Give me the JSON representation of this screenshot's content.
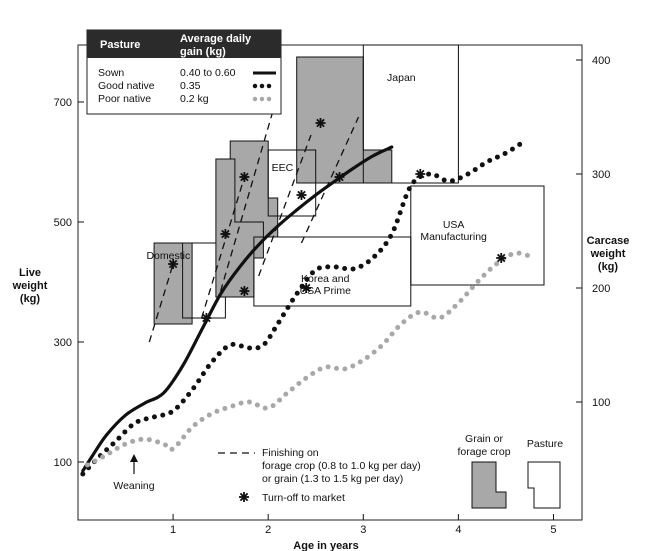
{
  "chart_data": {
    "type": "line",
    "xlabel": "Age in years",
    "ylabel_left": "Live weight (kg)",
    "ylabel_right": "Carcase weight (kg)",
    "xlim": [
      0,
      5.3
    ],
    "ylim": [
      50,
      830
    ],
    "x_ticks": [
      1,
      2,
      3,
      4,
      5
    ],
    "y_ticks_left": [
      100,
      300,
      500,
      700
    ],
    "y_ticks_right": [
      {
        "label": "100",
        "live": 200
      },
      {
        "label": "200",
        "live": 390
      },
      {
        "label": "300",
        "live": 580
      },
      {
        "label": "400",
        "live": 770
      }
    ],
    "legend": {
      "header": [
        "Pasture",
        "Average daily gain (kg)"
      ],
      "rows": [
        {
          "name": "Sown",
          "gain": "0.40 to 0.60",
          "style": "solid"
        },
        {
          "name": "Good native",
          "gain": "0.35",
          "style": "dotted-black"
        },
        {
          "name": "Poor native",
          "gain": "0.2 kg",
          "style": "dotted-grey"
        }
      ]
    },
    "series": [
      {
        "name": "Sown",
        "color": "#111111",
        "style": "solid",
        "x": [
          0.05,
          0.15,
          0.3,
          0.5,
          0.7,
          0.9,
          1.1,
          1.3,
          1.5,
          1.7,
          1.9,
          2.1,
          2.3,
          2.5,
          2.7,
          2.9,
          3.1,
          3.3
        ],
        "y": [
          85,
          110,
          145,
          178,
          198,
          215,
          260,
          320,
          380,
          425,
          462,
          493,
          520,
          545,
          568,
          590,
          610,
          625
        ]
      },
      {
        "name": "Good native",
        "color": "#111111",
        "style": "dotted",
        "x": [
          0.05,
          0.2,
          0.4,
          0.6,
          0.8,
          1.0,
          1.2,
          1.4,
          1.6,
          1.8,
          1.95,
          2.1,
          2.3,
          2.5,
          2.7,
          2.9,
          3.1,
          3.3,
          3.5,
          3.7,
          3.9,
          4.1,
          4.3,
          4.5,
          4.7
        ],
        "y": [
          80,
          105,
          135,
          165,
          175,
          185,
          220,
          265,
          295,
          290,
          295,
          330,
          380,
          420,
          425,
          422,
          440,
          480,
          560,
          580,
          568,
          580,
          600,
          615,
          635
        ]
      },
      {
        "name": "Poor native",
        "color": "#a8a8a8",
        "style": "dotted",
        "x": [
          0.1,
          0.3,
          0.5,
          0.7,
          0.9,
          1.0,
          1.2,
          1.4,
          1.6,
          1.8,
          2.0,
          2.2,
          2.4,
          2.6,
          2.8,
          3.0,
          3.2,
          3.4,
          3.6,
          3.8,
          4.0,
          4.2,
          4.4,
          4.6,
          4.8
        ],
        "y": [
          95,
          112,
          130,
          138,
          130,
          122,
          158,
          180,
          192,
          200,
          190,
          215,
          240,
          258,
          255,
          270,
          295,
          330,
          350,
          340,
          365,
          400,
          430,
          448,
          440
        ]
      }
    ],
    "boxes": [
      {
        "label": "Japan",
        "fill": "#a8a8a8",
        "outline": [
          [
            2.3,
            775
          ],
          [
            3.0,
            775
          ],
          [
            3.0,
            620
          ],
          [
            3.3,
            620
          ],
          [
            3.3,
            565
          ],
          [
            2.3,
            565
          ]
        ]
      },
      {
        "label": "Japan",
        "fill": "none",
        "outline": [
          [
            3.0,
            795
          ],
          [
            4.0,
            795
          ],
          [
            4.0,
            565
          ],
          [
            3.0,
            565
          ]
        ]
      },
      {
        "label": "EEC",
        "fill": "#a8a8a8",
        "outline": [
          [
            1.6,
            635
          ],
          [
            2.0,
            635
          ],
          [
            2.0,
            540
          ],
          [
            2.1,
            540
          ],
          [
            2.1,
            475
          ],
          [
            1.6,
            475
          ]
        ]
      },
      {
        "label": "EEC",
        "fill": "none",
        "outline": [
          [
            2.0,
            620
          ],
          [
            2.5,
            620
          ],
          [
            2.5,
            510
          ],
          [
            2.0,
            510
          ]
        ]
      },
      {
        "label": "Domestic",
        "fill": "#a8a8a8",
        "outline": [
          [
            0.8,
            465
          ],
          [
            1.2,
            465
          ],
          [
            1.2,
            375
          ],
          [
            1.2,
            340
          ],
          [
            1.2,
            330
          ],
          [
            0.8,
            330
          ]
        ]
      },
      {
        "label": "Domestic",
        "fill": "none",
        "outline": [
          [
            1.1,
            465
          ],
          [
            1.55,
            465
          ],
          [
            1.55,
            340
          ],
          [
            1.1,
            340
          ]
        ]
      },
      {
        "label": "Korea and USA Prime",
        "fill": "#a8a8a8",
        "outline": [
          [
            1.45,
            605
          ],
          [
            1.65,
            605
          ],
          [
            1.65,
            500
          ],
          [
            1.95,
            500
          ],
          [
            1.95,
            440
          ],
          [
            1.85,
            440
          ],
          [
            1.85,
            375
          ],
          [
            1.45,
            375
          ]
        ]
      },
      {
        "label": "Korea and USA Prime",
        "fill": "none",
        "outline": [
          [
            1.85,
            475
          ],
          [
            3.5,
            475
          ],
          [
            3.5,
            360
          ],
          [
            1.85,
            360
          ]
        ]
      },
      {
        "label": "USA Manufacturing",
        "fill": "none",
        "outline": [
          [
            3.5,
            560
          ],
          [
            4.9,
            560
          ],
          [
            4.9,
            395
          ],
          [
            3.5,
            395
          ]
        ]
      }
    ],
    "box_labels": [
      {
        "text": "Japan",
        "x": 3.4,
        "y": 735
      },
      {
        "text": "EEC",
        "x": 2.15,
        "y": 585
      },
      {
        "text": "Domestic",
        "x": 0.95,
        "y": 438
      },
      {
        "text": "Korea and USA Prime",
        "x": 2.6,
        "y": 400
      },
      {
        "text": "USA Manufacturing",
        "x": 3.95,
        "y": 490
      }
    ],
    "finishing_lines": [
      {
        "x": [
          0.75,
          1.0
        ],
        "y": [
          300,
          430
        ]
      },
      {
        "x": [
          1.3,
          1.75
        ],
        "y": [
          340,
          575
        ]
      },
      {
        "x": [
          1.5,
          2.05
        ],
        "y": [
          385,
          685
        ]
      },
      {
        "x": [
          1.9,
          2.45
        ],
        "y": [
          410,
          645
        ]
      },
      {
        "x": [
          2.35,
          2.95
        ],
        "y": [
          465,
          675
        ]
      }
    ],
    "turnoff_markers": [
      {
        "x": 1.0,
        "y": 430
      },
      {
        "x": 1.35,
        "y": 340
      },
      {
        "x": 1.55,
        "y": 480
      },
      {
        "x": 1.75,
        "y": 575
      },
      {
        "x": 1.75,
        "y": 385
      },
      {
        "x": 2.35,
        "y": 545
      },
      {
        "x": 2.4,
        "y": 390
      },
      {
        "x": 2.55,
        "y": 665
      },
      {
        "x": 2.75,
        "y": 575
      },
      {
        "x": 3.6,
        "y": 580
      },
      {
        "x": 4.45,
        "y": 440
      }
    ],
    "annotations": {
      "weaning": "Weaning",
      "finishing_line1": "Finishing on",
      "finishing_line2": "forage crop (0.8 to 1.0 kg per day)",
      "finishing_line3": "or grain (1.3 to 1.5 kg per day)",
      "turnoff": "Turn-off to market",
      "grain_label": "Grain or forage crop",
      "pasture_label": "Pasture"
    }
  }
}
